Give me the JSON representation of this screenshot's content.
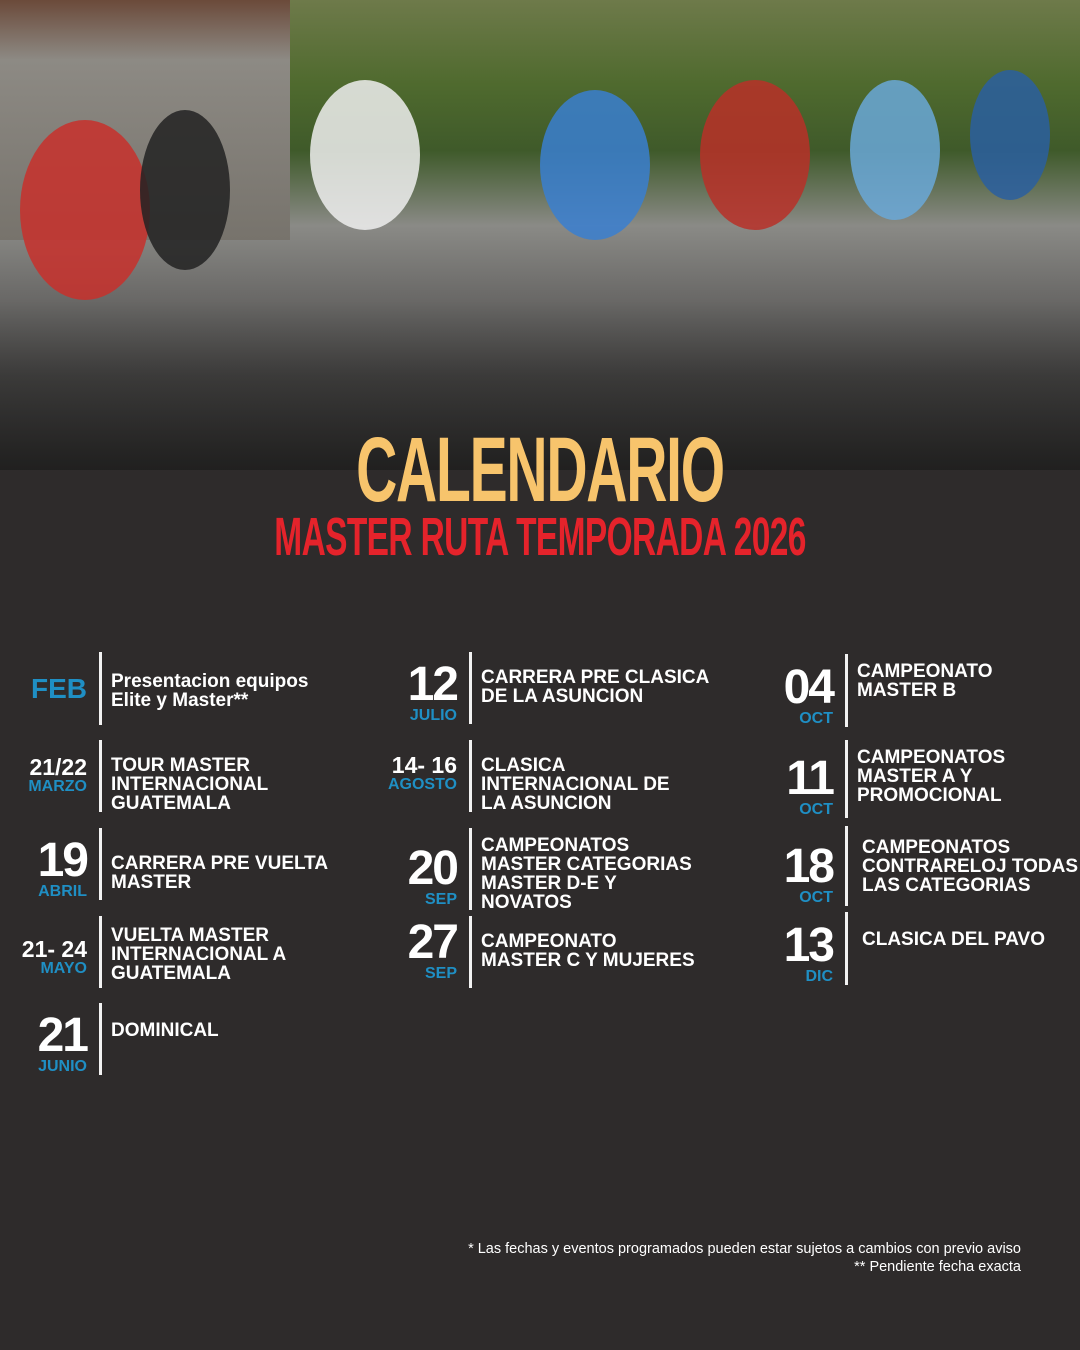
{
  "header": {
    "title": "CALENDARIO",
    "subtitle": "MASTER RUTA TEMPORADA 2026"
  },
  "colors": {
    "background": "#2e2b2b",
    "title": "#f7c46c",
    "subtitle": "#e5232b",
    "month": "#1f8fc4",
    "text": "#ffffff"
  },
  "photo": {
    "description_icon": "cycling-peloton-photo"
  },
  "events": [
    {
      "date": "",
      "month": "FEB",
      "title": "Presentacion equipos\nElite y Master**"
    },
    {
      "date": "21/22",
      "month": "MARZO",
      "title": "TOUR MASTER\nINTERNACIONAL\nGUATEMALA"
    },
    {
      "date": "19",
      "month": "ABRIL",
      "title": "CARRERA PRE VUELTA\nMASTER"
    },
    {
      "date": "21- 24",
      "month": "MAYO",
      "title": "VUELTA MASTER\nINTERNACIONAL A\nGUATEMALA"
    },
    {
      "date": "21",
      "month": "JUNIO",
      "title": "DOMINICAL"
    },
    {
      "date": "12",
      "month": "JULIO",
      "title": "CARRERA PRE CLASICA\nDE LA ASUNCION"
    },
    {
      "date": "14- 16",
      "month": "AGOSTO",
      "title": "CLASICA\nINTERNACIONAL DE\nLA ASUNCION"
    },
    {
      "date": "20",
      "month": "SEP",
      "title": "CAMPEONATOS\nMASTER CATEGORIAS\nMASTER D-E Y\nNOVATOS"
    },
    {
      "date": "27",
      "month": "SEP",
      "title": "CAMPEONATO\nMASTER C Y MUJERES"
    },
    {
      "date": "04",
      "month": "OCT",
      "title": "CAMPEONATO\nMASTER B"
    },
    {
      "date": "11",
      "month": "OCT",
      "title": "CAMPEONATOS\nMASTER A Y\nPROMOCIONAL"
    },
    {
      "date": "18",
      "month": "OCT",
      "title": "CAMPEONATOS\nCONTRARELOJ TODAS\nLAS CATEGORIAS"
    },
    {
      "date": "13",
      "month": "DIC",
      "title": "CLASICA DEL PAVO"
    }
  ],
  "footer": {
    "note1": "* Las fechas y eventos programados pueden estar sujetos a cambios con previo aviso",
    "note2": "** Pendiente fecha exacta"
  }
}
